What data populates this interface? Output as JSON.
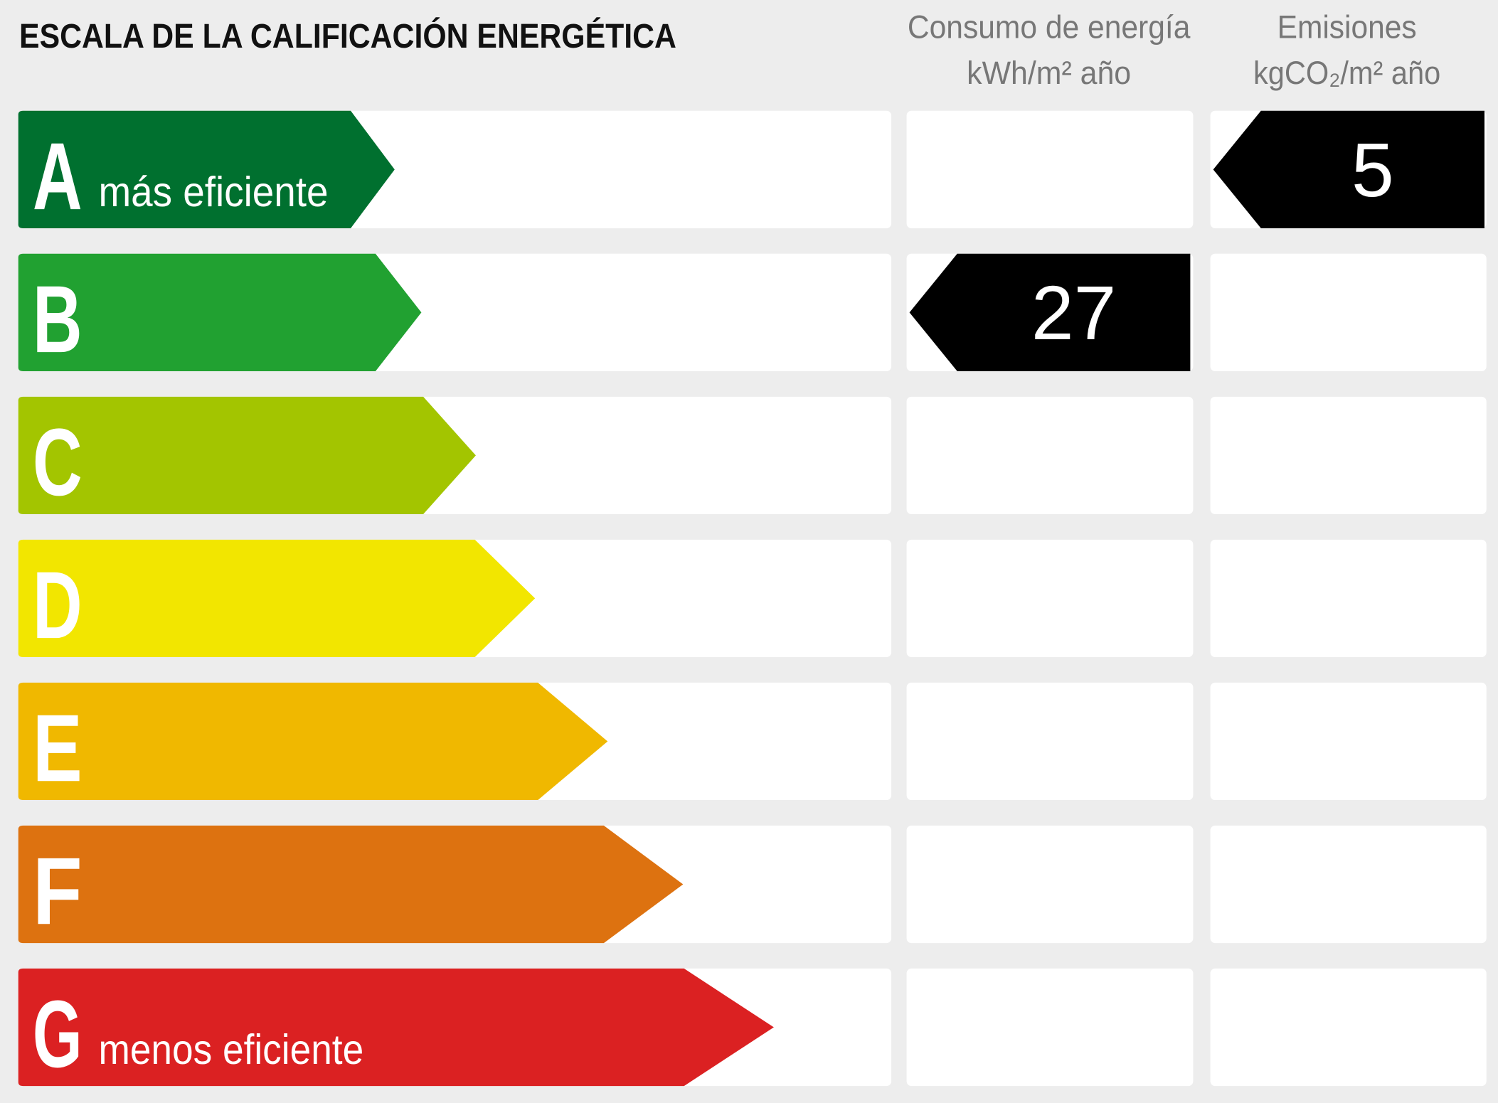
{
  "header": {
    "title": "ESCALA DE LA CALIFICACIÓN ENERGÉTICA",
    "consumption": {
      "title": "Consumo de energía",
      "unit": "kWh/m² año"
    },
    "emissions": {
      "title": "Emisiones",
      "unit": "kgCO₂/m² año"
    }
  },
  "rows": [
    {
      "letter": "A",
      "label": "más eficiente",
      "color": "#00702f"
    },
    {
      "letter": "B",
      "label": null,
      "color": "#21a131"
    },
    {
      "letter": "C",
      "label": null,
      "color": "#a3c500"
    },
    {
      "letter": "D",
      "label": null,
      "color": "#f2e600"
    },
    {
      "letter": "E",
      "label": null,
      "color": "#f0b800"
    },
    {
      "letter": "F",
      "label": null,
      "color": "#dd7210"
    },
    {
      "letter": "G",
      "label": "menos eficiente",
      "color": "#db2122"
    }
  ],
  "consumption": {
    "rating": "B",
    "value": 27
  },
  "emissions": {
    "rating": "A",
    "value": 5
  }
}
